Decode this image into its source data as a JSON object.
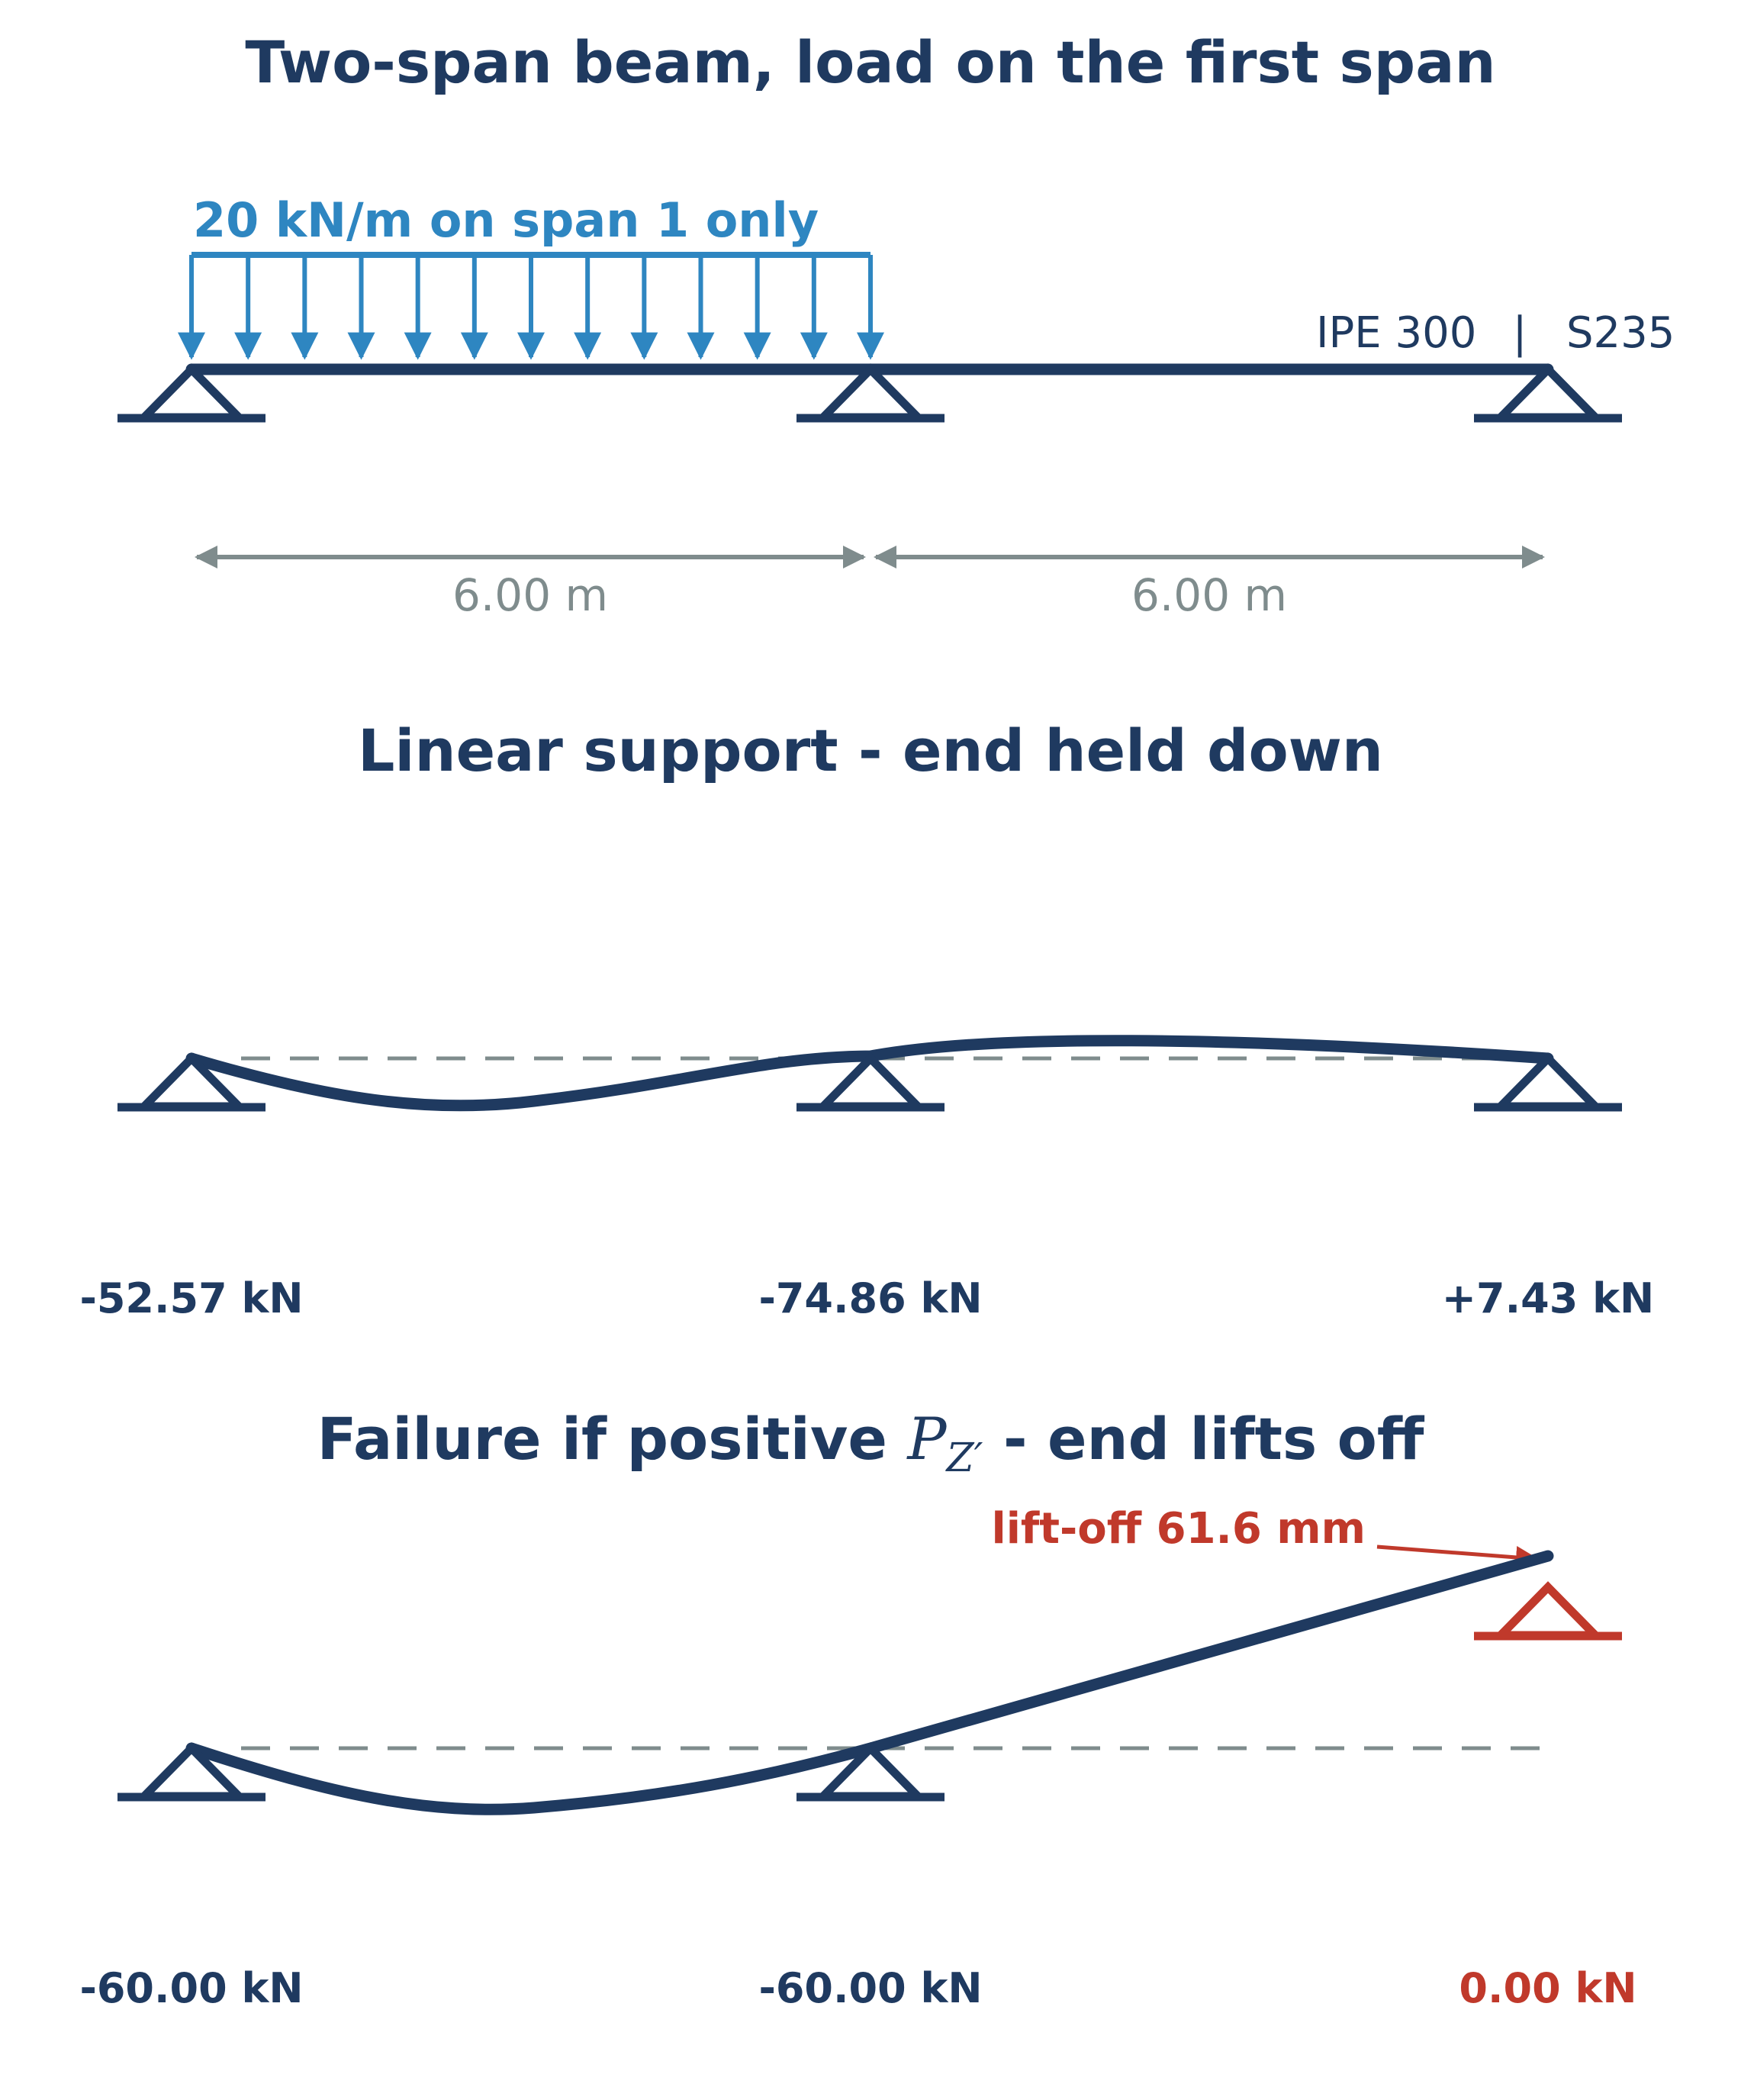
{
  "title": "Two-span beam, load on the first span",
  "load": {
    "label": "20 kN/m on span 1 only"
  },
  "section": {
    "profile": "IPE 300",
    "separator": "|",
    "material": "S235"
  },
  "spans": [
    {
      "label": "6.00 m"
    },
    {
      "label": "6.00 m"
    }
  ],
  "linear": {
    "title": "Linear support  -  end held down",
    "reactions": [
      "-52.57 kN",
      "-74.86 kN",
      "+7.43 kN"
    ]
  },
  "failure": {
    "title_pre": "Failure if positive ",
    "symbol": "P",
    "symbol_sub": "Z′",
    "title_post": "  -  end lifts off",
    "liftoff_label": "lift-off 61.6 mm",
    "reactions": [
      "-60.00 kN",
      "-60.00 kN",
      "0.00 kN"
    ]
  },
  "colors": {
    "primary": "#1f3a60",
    "load": "#2e86c1",
    "dimension": "#7f8c8d",
    "alert": "#c0392b"
  }
}
